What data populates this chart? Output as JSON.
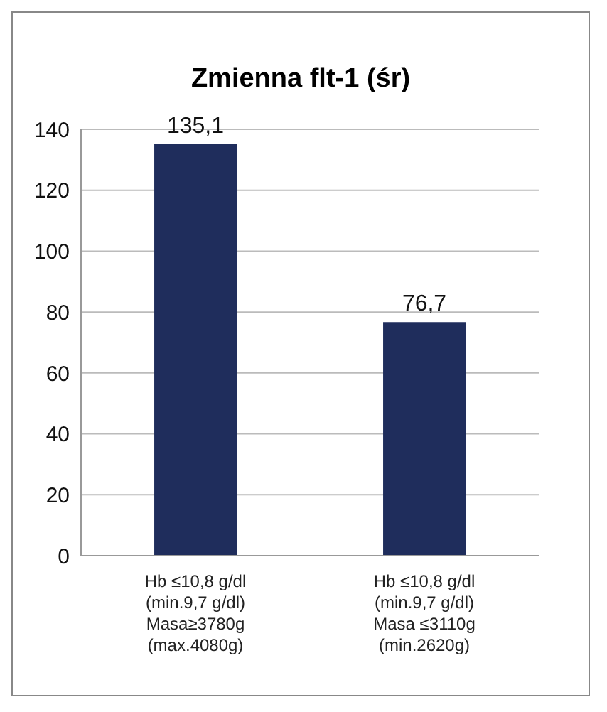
{
  "chart_data": {
    "type": "bar",
    "title": "Zmienna flt-1 (śr)",
    "categories": [
      "Hb ≤10,8 g/dl\n(min.9,7 g/dl)\nMasa≥3780g\n(max.4080g)",
      "Hb ≤10,8 g/dl\n(min.9,7 g/dl)\nMasa ≤3110g\n(min.2620g)"
    ],
    "values": [
      135.1,
      76.7
    ],
    "value_labels": [
      "135,1",
      "76,7"
    ],
    "color": "#1f2d5c",
    "ylim": [
      0,
      140
    ],
    "yticks": [
      0,
      20,
      40,
      60,
      80,
      100,
      120,
      140
    ],
    "grid": "y"
  }
}
